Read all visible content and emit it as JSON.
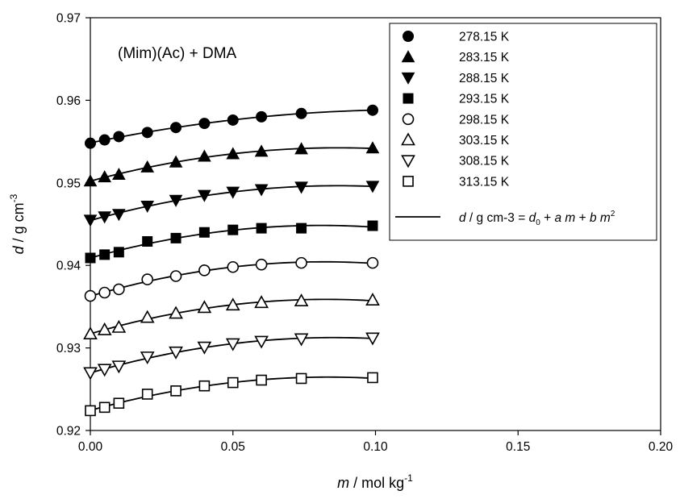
{
  "chart_data": {
    "type": "scatter",
    "annotation": "(Mim)(Ac) + DMA",
    "xlabel": {
      "italic": "m",
      "rest": " / mol kg",
      "sup": "-1"
    },
    "ylabel": {
      "italic": "d",
      "rest": " / g cm",
      "sup": "-3"
    },
    "xlim": [
      0.0,
      0.2
    ],
    "ylim": [
      0.92,
      0.97
    ],
    "xticks": [
      "0.00",
      "0.05",
      "0.10",
      "0.15",
      "0.20"
    ],
    "yticks": [
      "0.92",
      "0.93",
      "0.94",
      "0.95",
      "0.96",
      "0.97"
    ],
    "grid": false,
    "legend_position": "top-right",
    "x": [
      0.0,
      0.005,
      0.01,
      0.02,
      0.03,
      0.04,
      0.05,
      0.06,
      0.074,
      0.099
    ],
    "series": [
      {
        "name": "278.15 K",
        "marker": "circle-filled",
        "values": [
          0.9548,
          0.9552,
          0.9556,
          0.9561,
          0.9567,
          0.9572,
          0.9576,
          0.958,
          0.9584,
          0.9588
        ]
      },
      {
        "name": "283.15 K",
        "marker": "triangle-up-filled",
        "values": [
          0.9502,
          0.9507,
          0.951,
          0.9519,
          0.9525,
          0.9532,
          0.9535,
          0.9538,
          0.9541,
          0.9542
        ]
      },
      {
        "name": "288.15 K",
        "marker": "triangle-down-filled",
        "values": [
          0.9455,
          0.9459,
          0.9462,
          0.9472,
          0.9479,
          0.9485,
          0.9489,
          0.9492,
          0.9495,
          0.9496
        ]
      },
      {
        "name": "293.15 K",
        "marker": "square-filled",
        "values": [
          0.9409,
          0.9413,
          0.9416,
          0.9429,
          0.9433,
          0.944,
          0.9443,
          0.9445,
          0.9445,
          0.9448
        ]
      },
      {
        "name": "298.15 K",
        "marker": "circle-open",
        "values": [
          0.9363,
          0.9367,
          0.9371,
          0.9383,
          0.9387,
          0.9394,
          0.9398,
          0.9401,
          0.9403,
          0.9403
        ]
      },
      {
        "name": "303.15 K",
        "marker": "triangle-up-open",
        "values": [
          0.9317,
          0.9322,
          0.9325,
          0.9337,
          0.9342,
          0.9349,
          0.9352,
          0.9355,
          0.9357,
          0.9358
        ]
      },
      {
        "name": "308.15 K",
        "marker": "triangle-down-open",
        "values": [
          0.927,
          0.9274,
          0.9278,
          0.9289,
          0.9295,
          0.9301,
          0.9305,
          0.9308,
          0.9311,
          0.9312
        ]
      },
      {
        "name": "313.15 K",
        "marker": "square-open",
        "values": [
          0.9224,
          0.9228,
          0.9233,
          0.9244,
          0.9248,
          0.9254,
          0.9258,
          0.9261,
          0.9263,
          0.9264
        ]
      }
    ],
    "fit_legend": {
      "italic_d": "d",
      "mid": " / g cm-3 = ",
      "d": "d",
      "d_sub": "0",
      "plus1": " + ",
      "a": "a",
      "m1": "m",
      "plus2": " + ",
      "b": "b",
      "m2": "m",
      "m2_sup": "2"
    }
  }
}
